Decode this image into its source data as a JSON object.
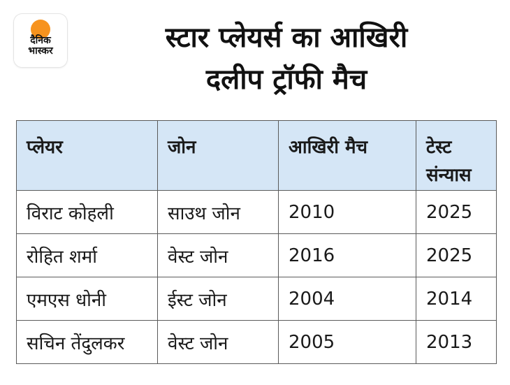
{
  "logo": {
    "line1": "दैनिक",
    "line2": "भास्कर",
    "accent_color": "#f7931e"
  },
  "title": {
    "line1": "स्टार प्लेयर्स का आखिरी",
    "line2": "दलीप ट्रॉफी मैच"
  },
  "table": {
    "header_color": "#d5e6f6",
    "columns": [
      {
        "line1": "प्लेयर",
        "line2": ""
      },
      {
        "line1": "जोन",
        "line2": ""
      },
      {
        "line1": "आखिरी मैच",
        "line2": ""
      },
      {
        "line1": "टेस्ट",
        "line2": "संन्यास"
      }
    ],
    "rows": [
      [
        "विराट कोहली",
        "साउथ जोन",
        "2010",
        "2025"
      ],
      [
        "रोहित शर्मा",
        "वेस्ट जोन",
        "2016",
        "2025"
      ],
      [
        "एमएस धोनी",
        "ईस्ट जोन",
        "2004",
        "2014"
      ],
      [
        "सचिन तेंदुलकर",
        "वेस्ट जोन",
        "2005",
        "2013"
      ]
    ]
  }
}
